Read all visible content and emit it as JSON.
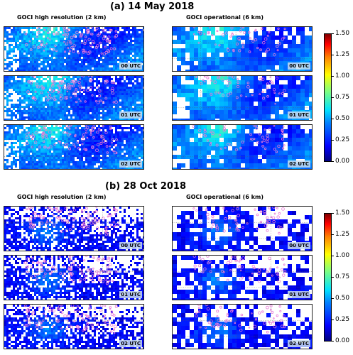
{
  "sections": [
    {
      "title": "(a)  14 May 2018",
      "left_title": "GOCI high resolution (2 km)",
      "right_title": "GOCI operational (6 km)",
      "times": [
        "00 UTC",
        "01 UTC",
        "02 UTC"
      ],
      "colorbar_ticks": [
        "1.50",
        "1.25",
        "1.00",
        "0.75",
        "0.50",
        "0.25",
        "0.00"
      ]
    },
    {
      "title": "(b)  28 Oct 2018",
      "left_title": "GOCI high resolution (2 km)",
      "right_title": "GOCI operational (6 km)",
      "times": [
        "00 UTC",
        "01 UTC",
        "02 UTC"
      ],
      "colorbar_ticks": [
        "1.50",
        "1.25",
        "1.00",
        "0.75",
        "0.50",
        "0.25",
        "0.00"
      ]
    }
  ]
}
